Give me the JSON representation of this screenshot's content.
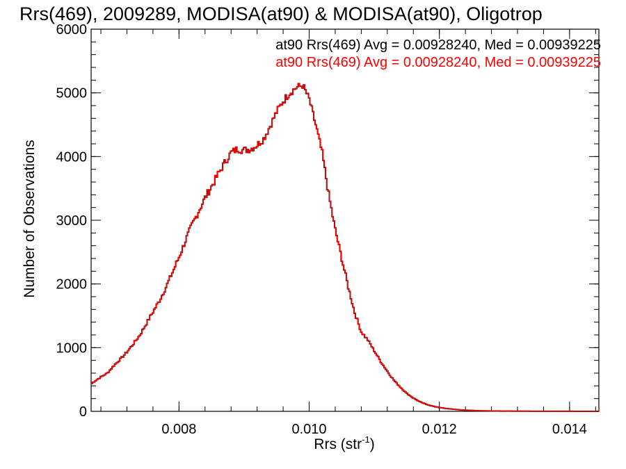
{
  "chart_data": {
    "type": "histogram-step",
    "title": "Rrs(469), 2009289, MODISA(at90) & MODISA(at90), Oligotrop",
    "xlabel": "Rrs (str",
    "xlabel_sup": "-1",
    "xlabel_close": ")",
    "ylabel": "Number of Observations",
    "xlim": [
      0.00665,
      0.01445
    ],
    "ylim": [
      0,
      6000
    ],
    "x_ticks": [
      0.008,
      0.01,
      0.012,
      0.014
    ],
    "x_tick_labels": [
      "0.008",
      "0.010",
      "0.012",
      "0.014"
    ],
    "y_ticks": [
      0,
      1000,
      2000,
      3000,
      4000,
      5000,
      6000
    ],
    "y_tick_labels": [
      "0",
      "1000",
      "2000",
      "3000",
      "4000",
      "5000",
      "6000"
    ],
    "grid": false,
    "legend_position": "top-right",
    "series": [
      {
        "name": "at90 Rrs(469) Avg = 0.00928240, Med = 0.00939225",
        "color": "#000000",
        "points": [
          [
            0.00665,
            430
          ],
          [
            0.0067,
            470
          ],
          [
            0.0068,
            540
          ],
          [
            0.0069,
            600
          ],
          [
            0.007,
            720
          ],
          [
            0.0071,
            820
          ],
          [
            0.0072,
            930
          ],
          [
            0.0073,
            1060
          ],
          [
            0.0074,
            1200
          ],
          [
            0.0075,
            1380
          ],
          [
            0.0076,
            1560
          ],
          [
            0.0077,
            1740
          ],
          [
            0.0078,
            1950
          ],
          [
            0.0079,
            2180
          ],
          [
            0.008,
            2420
          ],
          [
            0.0081,
            2680
          ],
          [
            0.0082,
            2920
          ],
          [
            0.0083,
            3140
          ],
          [
            0.0084,
            3350
          ],
          [
            0.0085,
            3530
          ],
          [
            0.0086,
            3720
          ],
          [
            0.0087,
            3900
          ],
          [
            0.0088,
            4060
          ],
          [
            0.0089,
            4120
          ],
          [
            0.009,
            4100
          ],
          [
            0.0091,
            4120
          ],
          [
            0.0092,
            4180
          ],
          [
            0.0093,
            4280
          ],
          [
            0.0094,
            4480
          ],
          [
            0.0095,
            4700
          ],
          [
            0.0096,
            4870
          ],
          [
            0.0097,
            5000
          ],
          [
            0.0098,
            5080
          ],
          [
            0.0099,
            5120
          ],
          [
            0.01,
            4900
          ],
          [
            0.0101,
            4500
          ],
          [
            0.0102,
            4050
          ],
          [
            0.0103,
            3400
          ],
          [
            0.0104,
            2850
          ],
          [
            0.0105,
            2400
          ],
          [
            0.0106,
            1950
          ],
          [
            0.0107,
            1550
          ],
          [
            0.0108,
            1250
          ],
          [
            0.0109,
            1120
          ],
          [
            0.011,
            950
          ],
          [
            0.0111,
            780
          ],
          [
            0.0112,
            630
          ],
          [
            0.0113,
            490
          ],
          [
            0.0114,
            380
          ],
          [
            0.0115,
            280
          ],
          [
            0.0116,
            210
          ],
          [
            0.0117,
            150
          ],
          [
            0.0118,
            110
          ],
          [
            0.0119,
            80
          ],
          [
            0.012,
            60
          ],
          [
            0.0121,
            45
          ],
          [
            0.0122,
            35
          ],
          [
            0.0123,
            25
          ],
          [
            0.0124,
            18
          ],
          [
            0.0125,
            14
          ],
          [
            0.0126,
            10
          ],
          [
            0.0127,
            8
          ],
          [
            0.0128,
            6
          ],
          [
            0.013,
            4
          ],
          [
            0.0132,
            3
          ],
          [
            0.0134,
            2
          ],
          [
            0.0136,
            2
          ],
          [
            0.0138,
            1
          ],
          [
            0.014,
            1
          ],
          [
            0.0142,
            0
          ],
          [
            0.01445,
            0
          ]
        ]
      },
      {
        "name": "at90 Rrs(469) Avg = 0.00928240, Med = 0.00939225",
        "color": "#ff0000",
        "points": [
          [
            0.00665,
            430
          ],
          [
            0.0067,
            470
          ],
          [
            0.0068,
            540
          ],
          [
            0.0069,
            600
          ],
          [
            0.007,
            720
          ],
          [
            0.0071,
            820
          ],
          [
            0.0072,
            930
          ],
          [
            0.0073,
            1060
          ],
          [
            0.0074,
            1200
          ],
          [
            0.0075,
            1380
          ],
          [
            0.0076,
            1560
          ],
          [
            0.0077,
            1740
          ],
          [
            0.0078,
            1950
          ],
          [
            0.0079,
            2180
          ],
          [
            0.008,
            2420
          ],
          [
            0.0081,
            2680
          ],
          [
            0.0082,
            2920
          ],
          [
            0.0083,
            3140
          ],
          [
            0.0084,
            3350
          ],
          [
            0.0085,
            3530
          ],
          [
            0.0086,
            3720
          ],
          [
            0.0087,
            3900
          ],
          [
            0.0088,
            4060
          ],
          [
            0.0089,
            4120
          ],
          [
            0.009,
            4100
          ],
          [
            0.0091,
            4120
          ],
          [
            0.0092,
            4180
          ],
          [
            0.0093,
            4280
          ],
          [
            0.0094,
            4480
          ],
          [
            0.0095,
            4700
          ],
          [
            0.0096,
            4870
          ],
          [
            0.0097,
            5000
          ],
          [
            0.0098,
            5080
          ],
          [
            0.0099,
            5120
          ],
          [
            0.01,
            4900
          ],
          [
            0.0101,
            4500
          ],
          [
            0.0102,
            4050
          ],
          [
            0.0103,
            3400
          ],
          [
            0.0104,
            2850
          ],
          [
            0.0105,
            2400
          ],
          [
            0.0106,
            1950
          ],
          [
            0.0107,
            1550
          ],
          [
            0.0108,
            1250
          ],
          [
            0.0109,
            1120
          ],
          [
            0.011,
            950
          ],
          [
            0.0111,
            780
          ],
          [
            0.0112,
            630
          ],
          [
            0.0113,
            490
          ],
          [
            0.0114,
            380
          ],
          [
            0.0115,
            280
          ],
          [
            0.0116,
            210
          ],
          [
            0.0117,
            150
          ],
          [
            0.0118,
            110
          ],
          [
            0.0119,
            80
          ],
          [
            0.012,
            60
          ],
          [
            0.0121,
            45
          ],
          [
            0.0122,
            35
          ],
          [
            0.0123,
            25
          ],
          [
            0.0124,
            18
          ],
          [
            0.0125,
            14
          ],
          [
            0.0126,
            10
          ],
          [
            0.0127,
            8
          ],
          [
            0.0128,
            6
          ],
          [
            0.013,
            4
          ],
          [
            0.0132,
            3
          ],
          [
            0.0134,
            2
          ],
          [
            0.0136,
            2
          ],
          [
            0.0138,
            1
          ],
          [
            0.014,
            1
          ],
          [
            0.0142,
            0
          ],
          [
            0.01445,
            0
          ]
        ]
      }
    ]
  }
}
